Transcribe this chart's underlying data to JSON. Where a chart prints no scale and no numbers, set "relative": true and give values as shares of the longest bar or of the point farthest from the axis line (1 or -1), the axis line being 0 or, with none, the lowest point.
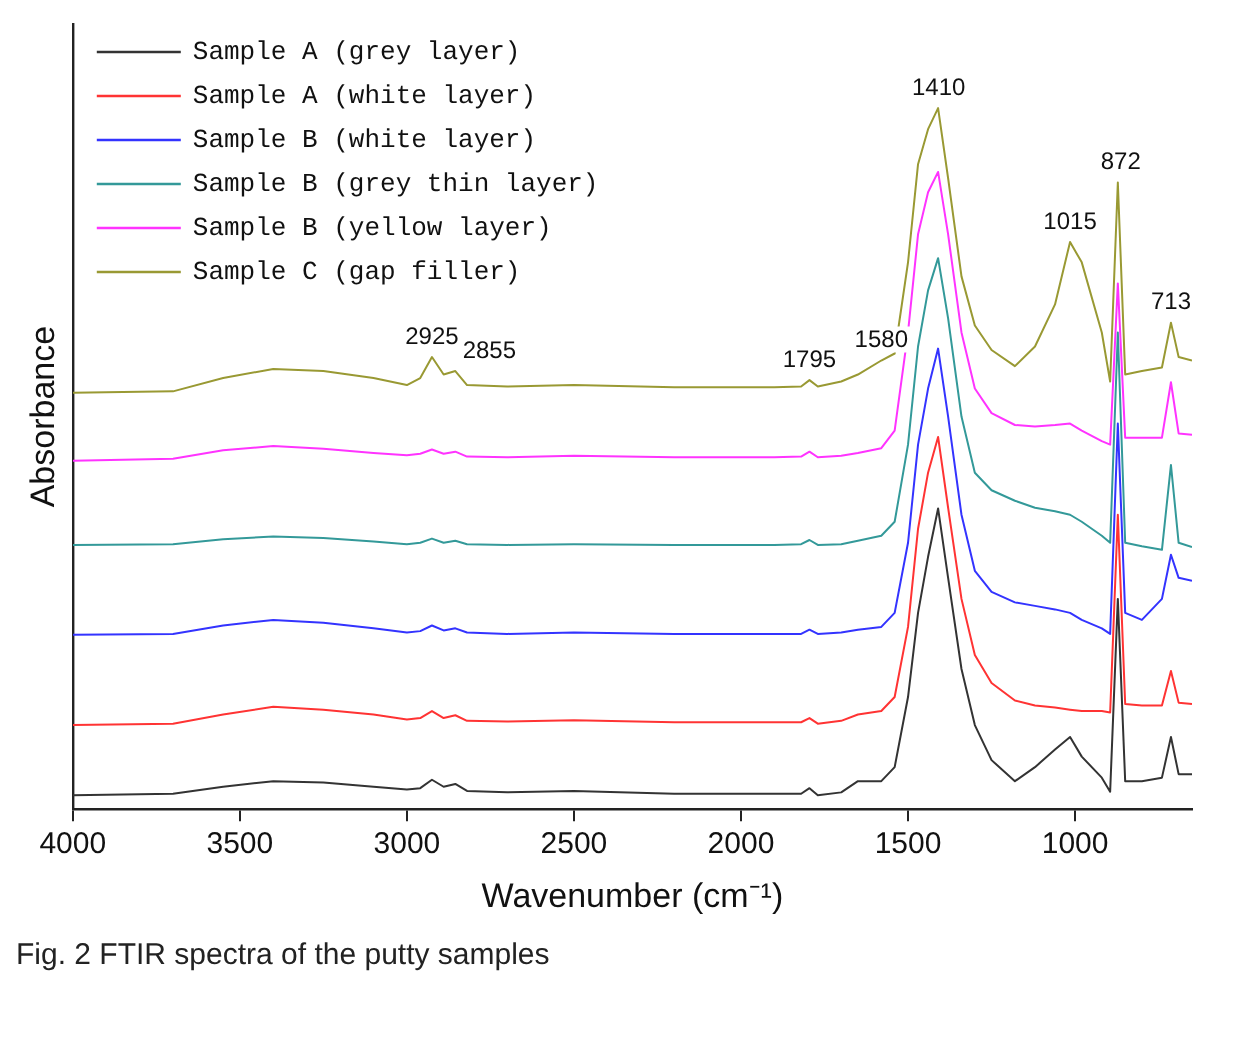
{
  "chart_data": {
    "type": "line",
    "relative": true,
    "xlabel": "Wavenumber (cm⁻¹)",
    "ylabel": "Absorbance",
    "x": [
      4000,
      3700,
      3550,
      3400,
      3250,
      3100,
      3000,
      2960,
      2925,
      2890,
      2855,
      2820,
      2700,
      2500,
      2200,
      1900,
      1820,
      1795,
      1770,
      1700,
      1650,
      1580,
      1540,
      1500,
      1470,
      1440,
      1410,
      1380,
      1340,
      1300,
      1250,
      1180,
      1120,
      1060,
      1015,
      980,
      920,
      895,
      872,
      850,
      800,
      740,
      713,
      690,
      650
    ],
    "xlim": [
      4000,
      650
    ],
    "xticks": [
      4000,
      3500,
      3000,
      2500,
      2000,
      1500,
      1000
    ],
    "grid": false,
    "legend": "top left",
    "marker": "none",
    "line_style": "solid",
    "series": [
      {
        "name": "Sample A (grey layer)",
        "color": "#333333",
        "values": [
          0.02,
          0.022,
          0.032,
          0.04,
          0.038,
          0.032,
          0.028,
          0.03,
          0.042,
          0.032,
          0.036,
          0.026,
          0.024,
          0.026,
          0.022,
          0.022,
          0.022,
          0.03,
          0.02,
          0.024,
          0.04,
          0.04,
          0.06,
          0.16,
          0.28,
          0.36,
          0.429,
          0.33,
          0.2,
          0.12,
          0.07,
          0.04,
          0.06,
          0.085,
          0.103,
          0.075,
          0.045,
          0.025,
          0.3,
          0.04,
          0.04,
          0.045,
          0.103,
          0.05,
          0.05
        ]
      },
      {
        "name": "Sample A (white layer)",
        "color": "#ff3333",
        "values": [
          0.12,
          0.122,
          0.135,
          0.146,
          0.142,
          0.135,
          0.128,
          0.13,
          0.14,
          0.13,
          0.134,
          0.126,
          0.125,
          0.127,
          0.124,
          0.124,
          0.124,
          0.13,
          0.122,
          0.126,
          0.135,
          0.14,
          0.16,
          0.26,
          0.4,
          0.48,
          0.531,
          0.43,
          0.3,
          0.22,
          0.18,
          0.155,
          0.148,
          0.145,
          0.142,
          0.14,
          0.14,
          0.138,
          0.42,
          0.15,
          0.148,
          0.148,
          0.197,
          0.152,
          0.15
        ]
      },
      {
        "name": "Sample B (white layer)",
        "color": "#3333ff",
        "values": [
          0.249,
          0.25,
          0.262,
          0.27,
          0.266,
          0.258,
          0.252,
          0.254,
          0.262,
          0.255,
          0.258,
          0.252,
          0.25,
          0.252,
          0.25,
          0.25,
          0.25,
          0.256,
          0.25,
          0.252,
          0.256,
          0.26,
          0.28,
          0.38,
          0.52,
          0.6,
          0.657,
          0.56,
          0.42,
          0.34,
          0.31,
          0.295,
          0.29,
          0.285,
          0.28,
          0.27,
          0.258,
          0.25,
          0.55,
          0.28,
          0.27,
          0.3,
          0.363,
          0.33,
          0.326
        ]
      },
      {
        "name": "Sample B (grey thin layer)",
        "color": "#339999",
        "values": [
          0.377,
          0.378,
          0.385,
          0.389,
          0.387,
          0.382,
          0.378,
          0.38,
          0.386,
          0.38,
          0.383,
          0.378,
          0.377,
          0.378,
          0.377,
          0.377,
          0.378,
          0.384,
          0.377,
          0.378,
          0.383,
          0.39,
          0.41,
          0.52,
          0.66,
          0.74,
          0.786,
          0.7,
          0.56,
          0.48,
          0.455,
          0.44,
          0.43,
          0.425,
          0.42,
          0.41,
          0.39,
          0.38,
          0.68,
          0.38,
          0.375,
          0.37,
          0.491,
          0.38,
          0.374
        ]
      },
      {
        "name": "Sample B (yellow layer)",
        "color": "#ff33ff",
        "values": [
          0.497,
          0.5,
          0.512,
          0.518,
          0.514,
          0.508,
          0.505,
          0.507,
          0.513,
          0.507,
          0.51,
          0.503,
          0.502,
          0.504,
          0.502,
          0.502,
          0.503,
          0.51,
          0.502,
          0.504,
          0.508,
          0.515,
          0.54,
          0.68,
          0.82,
          0.88,
          0.909,
          0.82,
          0.68,
          0.6,
          0.565,
          0.548,
          0.546,
          0.548,
          0.55,
          0.54,
          0.525,
          0.52,
          0.75,
          0.53,
          0.53,
          0.53,
          0.609,
          0.536,
          0.534
        ]
      },
      {
        "name": "Sample C (gap filler)",
        "color": "#999933",
        "values": [
          0.594,
          0.596,
          0.615,
          0.628,
          0.625,
          0.615,
          0.605,
          0.615,
          0.645,
          0.62,
          0.625,
          0.605,
          0.603,
          0.605,
          0.602,
          0.602,
          0.603,
          0.612,
          0.603,
          0.61,
          0.62,
          0.64,
          0.65,
          0.78,
          0.92,
          0.97,
          1.0,
          0.9,
          0.76,
          0.69,
          0.655,
          0.632,
          0.66,
          0.72,
          0.809,
          0.78,
          0.68,
          0.61,
          0.894,
          0.62,
          0.625,
          0.63,
          0.694,
          0.645,
          0.64
        ]
      }
    ],
    "annotations": [
      {
        "text": "2925",
        "x": 2925,
        "y": 0.645
      },
      {
        "text": "2855",
        "x": 2855,
        "y": 0.625
      },
      {
        "text": "1795",
        "x": 1795,
        "y": 0.612
      },
      {
        "text": "1580",
        "x": 1580,
        "y": 0.64
      },
      {
        "text": "1410",
        "x": 1410,
        "y": 1.0
      },
      {
        "text": "1015",
        "x": 1015,
        "y": 0.809
      },
      {
        "text": "872",
        "x": 872,
        "y": 0.894
      },
      {
        "text": "713",
        "x": 713,
        "y": 0.694
      },
      "Fig. 2  FTIR spectra of the putty samples"
    ]
  }
}
